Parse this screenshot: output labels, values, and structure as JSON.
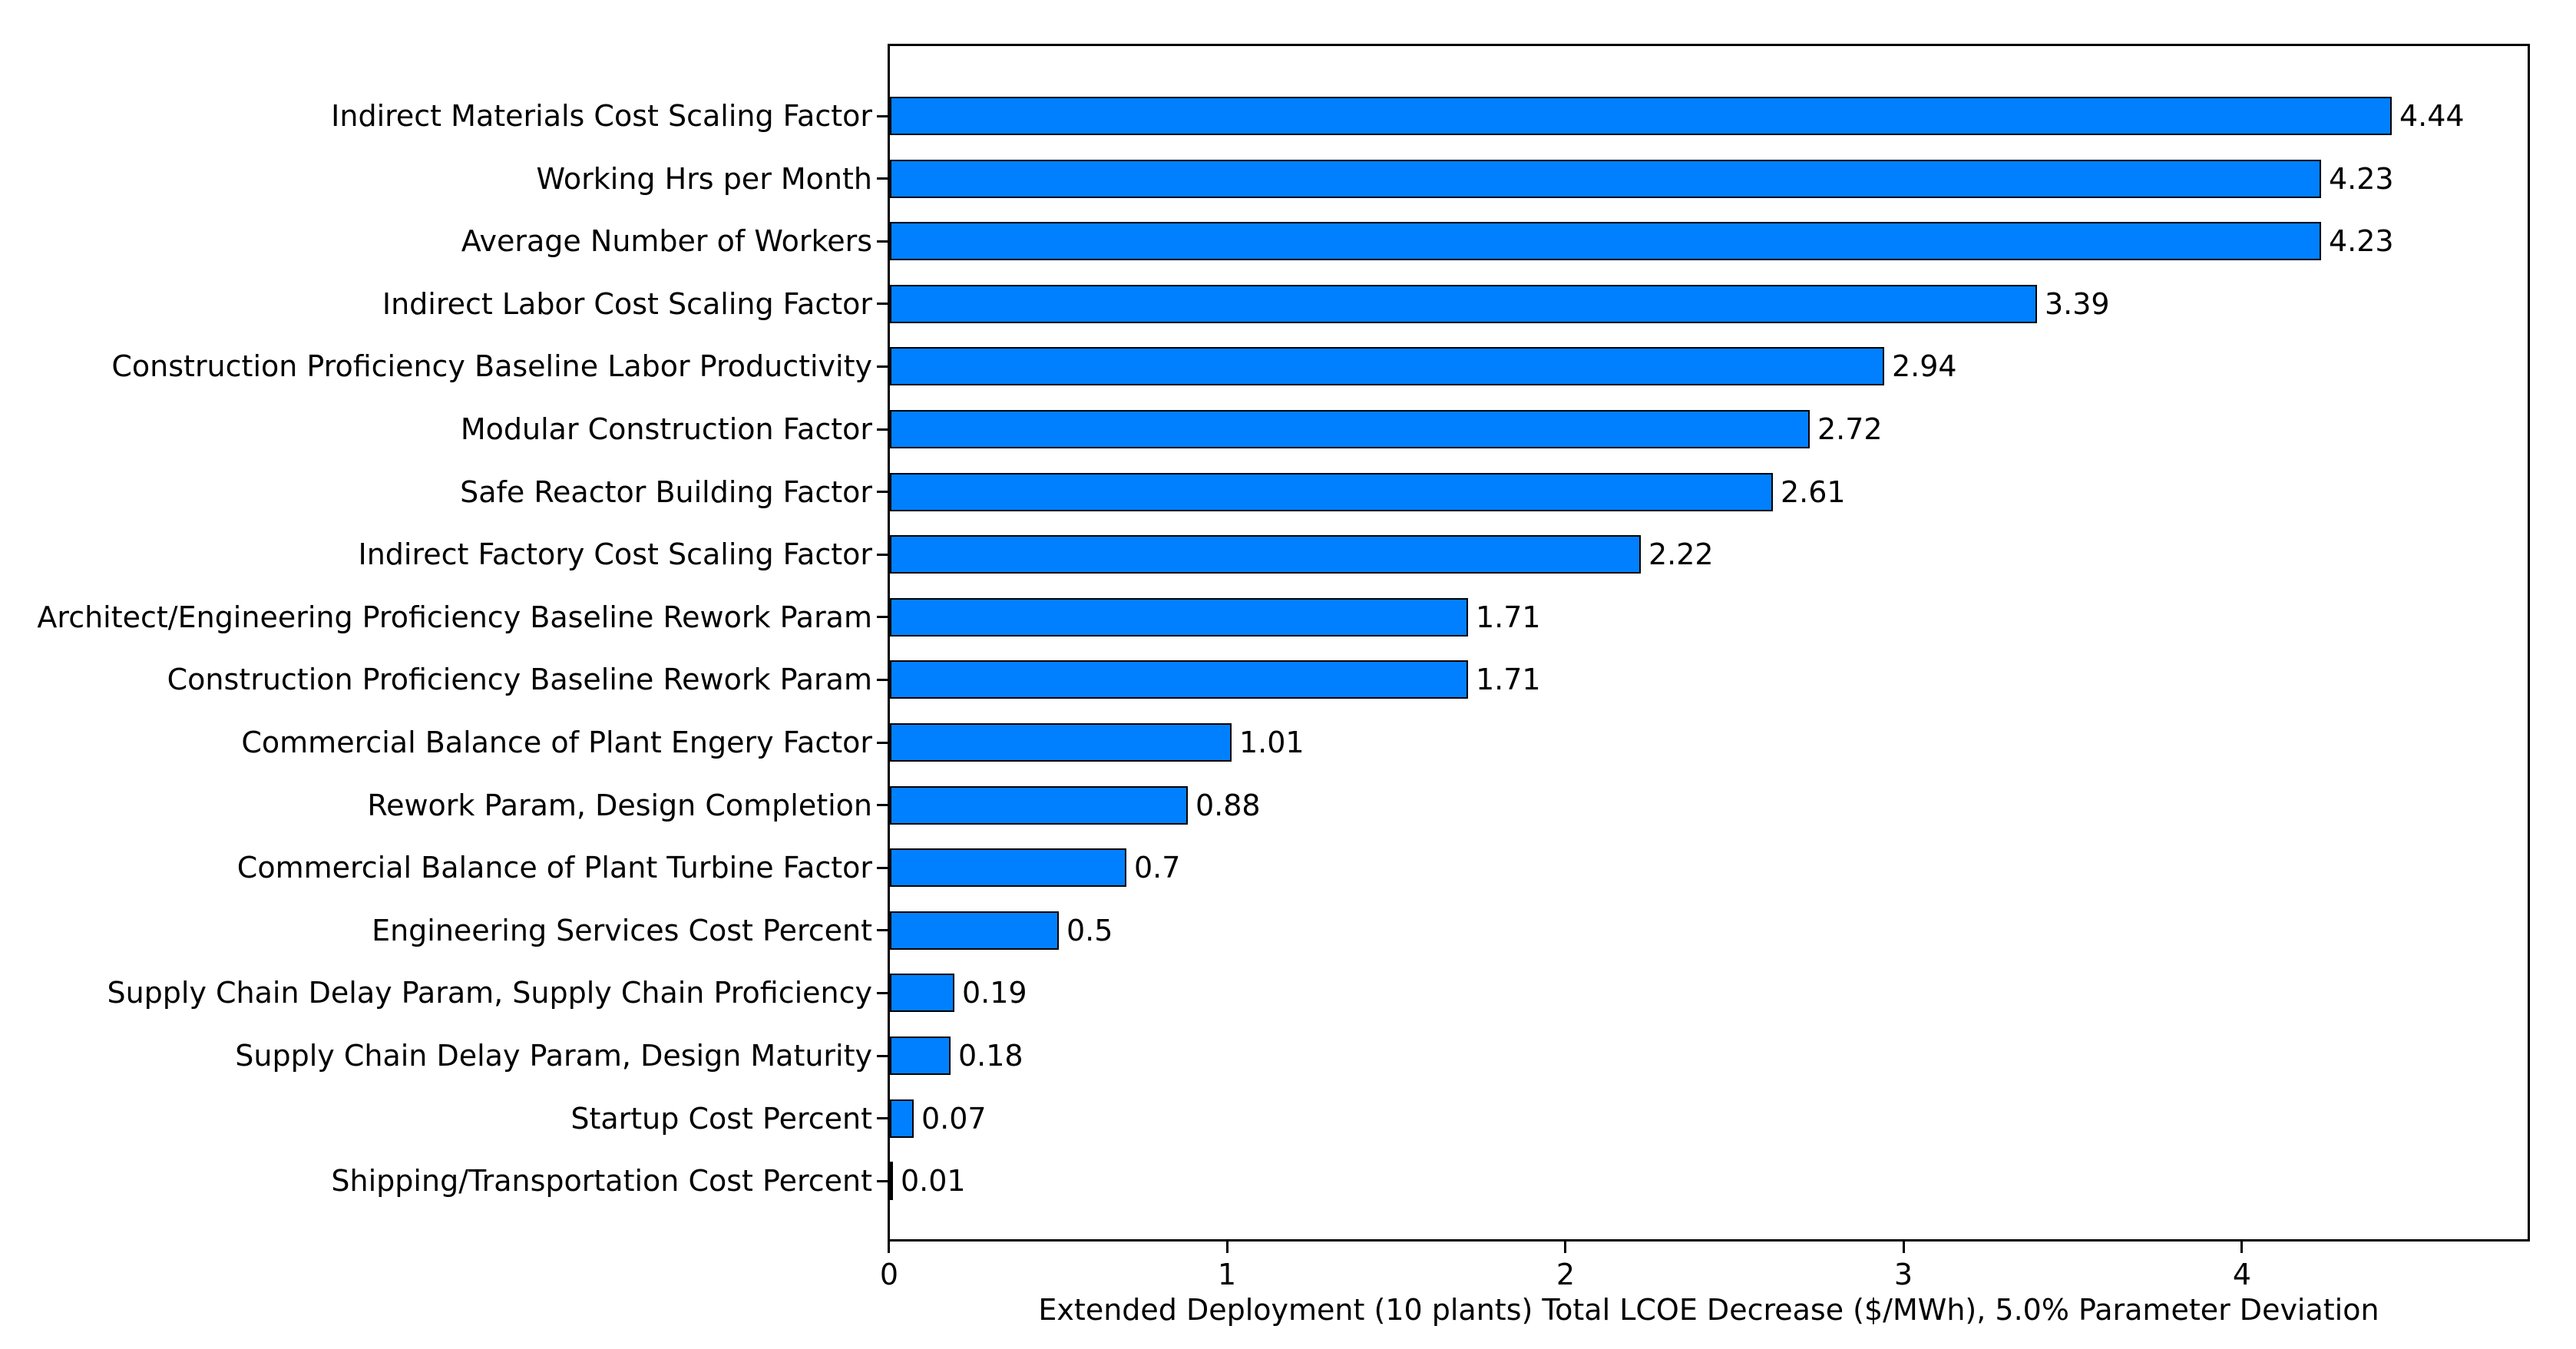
{
  "chart_data": {
    "type": "bar",
    "orientation": "horizontal",
    "title": "",
    "xlabel": "Extended Deployment (10 plants) Total LCOE Decrease ($/MWh), 5.0% Parameter Deviation",
    "ylabel": "",
    "categories": [
      "Indirect Materials Cost Scaling Factor",
      "Working Hrs per Month",
      "Average Number of Workers",
      "Indirect Labor Cost Scaling Factor",
      "Construction Proficiency Baseline Labor Productivity",
      "Modular Construction Factor",
      "Safe Reactor Building Factor",
      "Indirect Factory Cost Scaling Factor",
      "Architect/Engineering Proficiency Baseline Rework Param",
      "Construction Proficiency Baseline Rework Param",
      "Commercial Balance of Plant Engery Factor",
      "Rework Param, Design Completion",
      "Commercial Balance of Plant Turbine Factor",
      "Engineering Services Cost Percent",
      "Supply Chain Delay Param, Supply Chain Proficiency",
      "Supply Chain Delay Param, Design Maturity",
      "Startup Cost Percent",
      "Shipping/Transportation Cost Percent"
    ],
    "values": [
      4.44,
      4.23,
      4.23,
      3.39,
      2.94,
      2.72,
      2.61,
      2.22,
      1.71,
      1.71,
      1.01,
      0.88,
      0.7,
      0.5,
      0.19,
      0.18,
      0.07,
      0.01
    ],
    "value_labels": [
      "4.44",
      "4.23",
      "4.23",
      "3.39",
      "2.94",
      "2.72",
      "2.61",
      "2.22",
      "1.71",
      "1.71",
      "1.01",
      "0.88",
      "0.7",
      "0.5",
      "0.19",
      "0.18",
      "0.07",
      "0.01"
    ],
    "xtick_labels": [
      "0",
      "1",
      "2",
      "3",
      "4"
    ],
    "xtick_values": [
      0,
      1,
      2,
      3,
      4
    ],
    "xlim": [
      0,
      4.855
    ],
    "grid": false,
    "legend": null,
    "bar_color": "#0080ff",
    "bar_edge_color": "#000000",
    "axis_color": "#000000",
    "text_color": "#000000",
    "background_color": "#ffffff"
  }
}
